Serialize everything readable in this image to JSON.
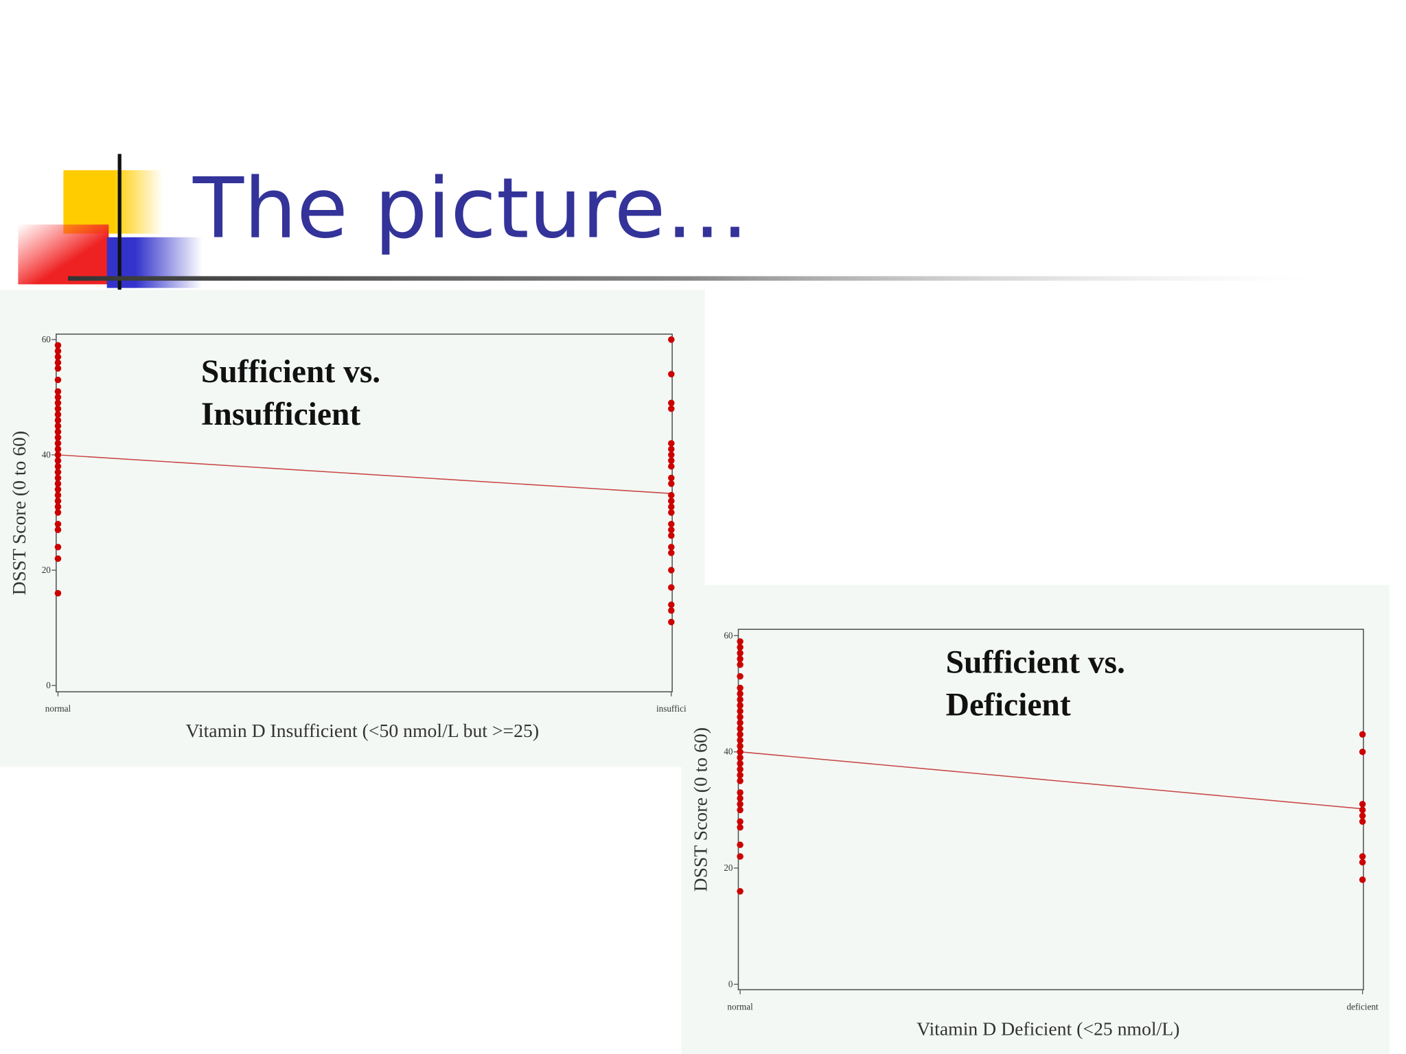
{
  "title": "The picture…",
  "chart_data": [
    {
      "type": "scatter",
      "annotation": [
        "Sufficient vs.",
        "Insufficient"
      ],
      "ylabel": "DSST Score (0 to 60)",
      "xlabel": "Vitamin D Insufficient (<50 nmol/L but >=25)",
      "categories": [
        "normal",
        "insuffici"
      ],
      "values": [
        [
          59,
          58,
          57,
          56,
          55,
          53,
          51,
          50,
          49,
          48,
          47,
          46,
          45,
          44,
          43,
          42,
          41,
          40,
          39,
          38,
          37,
          36,
          35,
          34,
          33,
          32,
          31,
          30,
          28,
          27,
          24,
          22,
          16
        ],
        [
          60,
          54,
          49,
          48,
          42,
          41,
          40,
          39,
          38,
          36,
          35,
          33,
          32,
          31,
          30,
          28,
          27,
          26,
          24,
          23,
          20,
          17,
          14,
          13,
          11
        ]
      ],
      "fit_line": [
        40,
        33.3
      ],
      "color": "#cc0000",
      "line_color": "#c84848",
      "ylim": [
        0,
        60
      ],
      "yticks": [
        0,
        20,
        40,
        60
      ]
    },
    {
      "type": "scatter",
      "annotation": [
        "Sufficient vs.",
        "Deficient"
      ],
      "ylabel": "DSST Score (0 to 60)",
      "xlabel": "Vitamin D Deficient (<25 nmol/L)",
      "categories": [
        "normal",
        "deficient"
      ],
      "values": [
        [
          59,
          58,
          57,
          56,
          55,
          53,
          51,
          50,
          49,
          48,
          47,
          46,
          45,
          44,
          43,
          42,
          41,
          40,
          39,
          38,
          37,
          36,
          35,
          33,
          32,
          31,
          30,
          28,
          27,
          24,
          22,
          16
        ],
        [
          43,
          40,
          31,
          30,
          29,
          28,
          22,
          21,
          18
        ]
      ],
      "fit_line": [
        40,
        30.2
      ],
      "color": "#cc0000",
      "line_color": "#c84848",
      "ylim": [
        0,
        60
      ],
      "yticks": [
        0,
        20,
        40,
        60
      ]
    }
  ]
}
